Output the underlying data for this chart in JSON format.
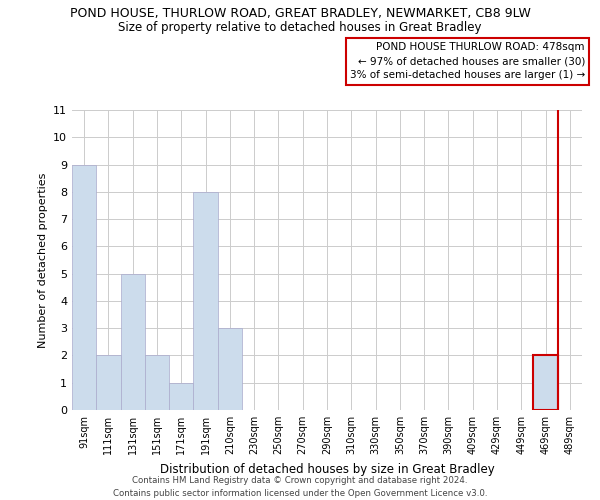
{
  "title": "POND HOUSE, THURLOW ROAD, GREAT BRADLEY, NEWMARKET, CB8 9LW",
  "subtitle": "Size of property relative to detached houses in Great Bradley",
  "xlabel": "Distribution of detached houses by size in Great Bradley",
  "ylabel": "Number of detached properties",
  "bin_labels": [
    "91sqm",
    "111sqm",
    "131sqm",
    "151sqm",
    "171sqm",
    "191sqm",
    "210sqm",
    "230sqm",
    "250sqm",
    "270sqm",
    "290sqm",
    "310sqm",
    "330sqm",
    "350sqm",
    "370sqm",
    "390sqm",
    "409sqm",
    "429sqm",
    "449sqm",
    "469sqm",
    "489sqm"
  ],
  "bar_values": [
    9,
    2,
    5,
    2,
    1,
    8,
    3,
    0,
    0,
    0,
    0,
    0,
    0,
    0,
    0,
    0,
    0,
    0,
    0,
    2,
    0
  ],
  "bar_color": "#ccdcec",
  "highlight_bar_index": 19,
  "highlight_bar_edge_color": "#cc0000",
  "ylim": [
    0,
    11
  ],
  "yticks": [
    0,
    1,
    2,
    3,
    4,
    5,
    6,
    7,
    8,
    9,
    10,
    11
  ],
  "annotation_title": "POND HOUSE THURLOW ROAD: 478sqm",
  "annotation_line1": "← 97% of detached houses are smaller (30)",
  "annotation_line2": "3% of semi-detached houses are larger (1) →",
  "annotation_box_color": "#ffffff",
  "annotation_border_color": "#cc0000",
  "footer_line1": "Contains HM Land Registry data © Crown copyright and database right 2024.",
  "footer_line2": "Contains public sector information licensed under the Open Government Licence v3.0.",
  "background_color": "#ffffff",
  "grid_color": "#cccccc"
}
